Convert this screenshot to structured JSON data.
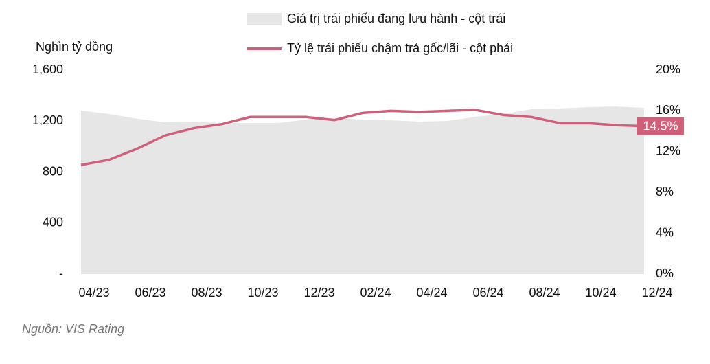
{
  "chart_data": {
    "type": "combo",
    "y_label": "Nghìn tỷ đồng",
    "source": "Nguồn: VIS Rating",
    "categories": [
      "04/23",
      null,
      "06/23",
      null,
      "08/23",
      null,
      "10/23",
      null,
      "12/23",
      null,
      "02/24",
      null,
      "04/24",
      null,
      "06/24",
      null,
      "08/24",
      null,
      "10/24",
      null,
      "12/24"
    ],
    "ylim": [
      0,
      1600
    ],
    "yticks": [
      {
        "value": 0,
        "label": "-"
      },
      400,
      800,
      {
        "value": 1200,
        "label": "1,200"
      },
      {
        "value": 1600,
        "label": "1,600"
      }
    ],
    "y2lim": [
      0,
      20
    ],
    "y2ticks": [
      {
        "value": 0,
        "label": "0%"
      },
      {
        "value": 4,
        "label": "4%"
      },
      {
        "value": 8,
        "label": "8%"
      },
      {
        "value": 12,
        "label": "12%"
      },
      {
        "value": 16,
        "label": "16%"
      },
      {
        "value": 20,
        "label": "20%"
      }
    ],
    "series": [
      {
        "name": "Giá trị trái phiếu đang lưu hành - cột trái",
        "type": "area",
        "color": "#e6e6e6",
        "values": [
          1282,
          1255,
          1218,
          1190,
          1196,
          1185,
          1185,
          1185,
          1212,
          1223,
          1212,
          1207,
          1196,
          1201,
          1234,
          1255,
          1293,
          1298,
          1309,
          1314,
          1304
        ]
      },
      {
        "name": "Tỷ lệ trái phiếu chậm trả gốc/lãi - cột phải",
        "type": "line",
        "axis": "y2",
        "color": "#d0607a",
        "values": [
          10.7,
          11.2,
          12.3,
          13.6,
          14.3,
          14.7,
          15.4,
          15.4,
          15.4,
          15.1,
          15.8,
          16.0,
          15.9,
          16.0,
          16.1,
          15.6,
          15.4,
          14.8,
          14.8,
          14.6,
          14.5
        ],
        "value_labels": [
          null,
          null,
          null,
          null,
          null,
          null,
          null,
          null,
          null,
          null,
          null,
          null,
          null,
          null,
          null,
          null,
          null,
          null,
          null,
          null,
          "14.5%"
        ]
      }
    ]
  }
}
